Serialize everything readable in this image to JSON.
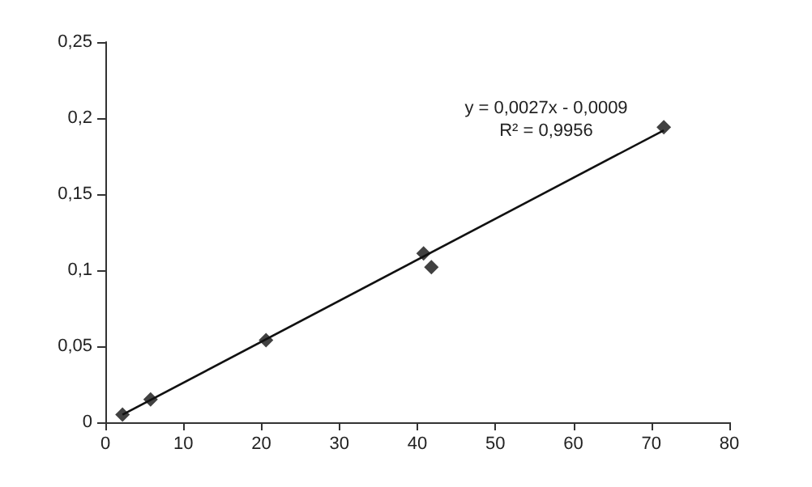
{
  "chart_data": {
    "type": "scatter",
    "marker": "diamond",
    "grid": false,
    "xlim": [
      0,
      80
    ],
    "xticks": [
      0,
      10,
      20,
      30,
      40,
      50,
      60,
      70,
      80
    ],
    "ylim": [
      0,
      0.25
    ],
    "yticks": [
      0,
      {
        "value": 0.05,
        "label": "0,05"
      },
      {
        "value": 0.1,
        "label": "0,1"
      },
      {
        "value": 0.15,
        "label": "0,15"
      },
      {
        "value": 0.2,
        "label": "0,2"
      },
      {
        "value": 0.25,
        "label": "0,25"
      }
    ],
    "series": [
      {
        "color": "#111111",
        "x": [
          2.2,
          5.8,
          20.6,
          40.8,
          41.8,
          71.6
        ],
        "values": [
          0.005,
          0.015,
          0.054,
          0.111,
          0.102,
          0.194
        ]
      },
      {
        "type": "line",
        "color": "#111111",
        "marker": "none",
        "line_style": "solid",
        "x": [
          2.2,
          71.6
        ],
        "values": [
          0.005,
          0.192
        ]
      }
    ],
    "annotations": [
      "y = 0,0027x - 0,0009",
      "R² = 0,9956"
    ]
  }
}
